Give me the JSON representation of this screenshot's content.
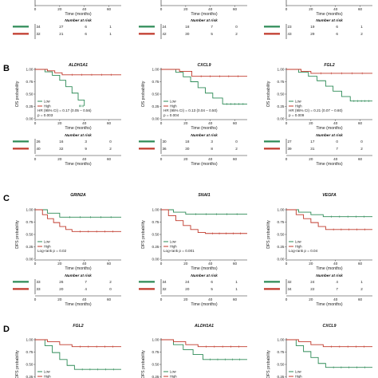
{
  "colors": {
    "low": "#2e8b57",
    "high": "#c0392b",
    "axis": "#222222"
  },
  "risk_title": "Number at risk",
  "xlabel": "Time (months)",
  "legend": {
    "low": "Low",
    "high": "High"
  },
  "top_row": [
    {
      "risk": [
        [
          34,
          27,
          6,
          1
        ],
        [
          32,
          21,
          6,
          1
        ]
      ],
      "xticks": [
        "0",
        "20",
        "40",
        "60"
      ]
    },
    {
      "risk": [
        [
          24,
          18,
          7,
          0
        ],
        [
          42,
          30,
          5,
          2
        ]
      ],
      "xticks": [
        "0",
        "20",
        "40",
        "60"
      ]
    },
    {
      "risk": [
        [
          23,
          19,
          6,
          1
        ],
        [
          43,
          29,
          6,
          2
        ]
      ],
      "xticks": [
        "0",
        "20",
        "40",
        "60"
      ]
    }
  ],
  "chart_data": [
    {
      "type": "line",
      "panel": "B",
      "title": "ALDH1A1",
      "xlabel": "Time (months)",
      "ylabel": "OS probability",
      "xlim": [
        0,
        70
      ],
      "ylim": [
        0,
        1
      ],
      "xticks": [
        "0",
        "20",
        "40",
        "60"
      ],
      "yticks": [
        "0.00",
        "0.25",
        "0.50",
        "0.75",
        "1.00"
      ],
      "note": [
        "HR (95% CI) = 0.17 (0.05 – 0.56)",
        "p = 0.003"
      ],
      "series": [
        {
          "name": "Low",
          "x": [
            0,
            8,
            14,
            20,
            25,
            30,
            35,
            40
          ],
          "y": [
            1,
            0.95,
            0.88,
            0.78,
            0.65,
            0.52,
            0.38,
            0.26
          ]
        },
        {
          "name": "High",
          "x": [
            0,
            10,
            16,
            22,
            70
          ],
          "y": [
            1,
            0.97,
            0.93,
            0.89,
            0.89
          ]
        }
      ],
      "risk": [
        [
          26,
          16,
          3,
          0
        ],
        [
          40,
          32,
          9,
          2
        ]
      ]
    },
    {
      "type": "line",
      "panel": "B",
      "title": "CXCL9",
      "xlabel": "Time (months)",
      "ylabel": "OS probability",
      "xlim": [
        0,
        70
      ],
      "ylim": [
        0,
        1
      ],
      "xticks": [
        "0",
        "20",
        "40",
        "60"
      ],
      "yticks": [
        "0.00",
        "0.25",
        "0.50",
        "0.75",
        "1.00"
      ],
      "note": [
        "HR (95% CI) = 0.13 (0.04 – 0.50)",
        "p = 0.004"
      ],
      "series": [
        {
          "name": "Low",
          "x": [
            0,
            12,
            18,
            24,
            30,
            36,
            42,
            50,
            70
          ],
          "y": [
            1,
            0.94,
            0.85,
            0.75,
            0.63,
            0.52,
            0.42,
            0.3,
            0.3
          ]
        },
        {
          "name": "High",
          "x": [
            0,
            15,
            25,
            70
          ],
          "y": [
            1,
            0.96,
            0.86,
            0.86
          ]
        }
      ],
      "risk": [
        [
          30,
          18,
          3,
          0
        ],
        [
          36,
          30,
          8,
          2
        ]
      ]
    },
    {
      "type": "line",
      "panel": "B",
      "title": "FGL2",
      "xlabel": "Time (months)",
      "ylabel": "OS probability",
      "xlim": [
        0,
        70
      ],
      "ylim": [
        0,
        1
      ],
      "xticks": [
        "0",
        "20",
        "40",
        "60"
      ],
      "yticks": [
        "0.00",
        "0.25",
        "0.50",
        "0.75",
        "1.00"
      ],
      "note": [
        "HR (95% CI) = 0.21 (0.07 – 0.60)",
        "p = 0.009"
      ],
      "series": [
        {
          "name": "Low",
          "x": [
            0,
            10,
            18,
            25,
            32,
            38,
            45,
            52,
            70
          ],
          "y": [
            1,
            0.94,
            0.86,
            0.77,
            0.66,
            0.56,
            0.45,
            0.36,
            0.36
          ]
        },
        {
          "name": "High",
          "x": [
            0,
            12,
            20,
            70
          ],
          "y": [
            1,
            0.96,
            0.92,
            0.92
          ]
        }
      ],
      "risk": [
        [
          27,
          17,
          0,
          0
        ],
        [
          39,
          31,
          7,
          2
        ]
      ]
    },
    {
      "type": "line",
      "panel": "C",
      "title": "GRIN2A",
      "xlabel": "Time (months)",
      "ylabel": "DFS probability",
      "xlim": [
        0,
        70
      ],
      "ylim": [
        0,
        1
      ],
      "xticks": [
        "0",
        "20",
        "40",
        "60"
      ],
      "yticks": [
        "0.00",
        "0.25",
        "0.50",
        "0.75",
        "1.00"
      ],
      "note": [
        "Log-rank  p = 0.02",
        ""
      ],
      "series": [
        {
          "name": "Low",
          "x": [
            0,
            10,
            20,
            70
          ],
          "y": [
            1,
            0.93,
            0.85,
            0.85
          ]
        },
        {
          "name": "High",
          "x": [
            0,
            6,
            10,
            15,
            20,
            25,
            30,
            70
          ],
          "y": [
            1,
            0.9,
            0.82,
            0.74,
            0.66,
            0.6,
            0.56,
            0.56
          ]
        }
      ],
      "risk": [
        [
          33,
          26,
          7,
          2
        ],
        [
          33,
          20,
          4,
          0
        ]
      ]
    },
    {
      "type": "line",
      "panel": "C",
      "title": "SNAI1",
      "xlabel": "Time (months)",
      "ylabel": "DFS probability",
      "xlim": [
        0,
        70
      ],
      "ylim": [
        0,
        1
      ],
      "xticks": [
        "0",
        "20",
        "40",
        "60"
      ],
      "yticks": [
        "0.00",
        "0.25",
        "0.50",
        "0.75",
        "1.00"
      ],
      "note": [
        "Log-rank  p = 0.001",
        ""
      ],
      "series": [
        {
          "name": "Low",
          "x": [
            0,
            10,
            20,
            70
          ],
          "y": [
            1,
            0.95,
            0.91,
            0.91
          ]
        },
        {
          "name": "High",
          "x": [
            0,
            6,
            12,
            18,
            24,
            30,
            36,
            70
          ],
          "y": [
            1,
            0.88,
            0.78,
            0.68,
            0.6,
            0.54,
            0.52,
            0.52
          ]
        }
      ],
      "risk": [
        [
          34,
          24,
          6,
          1
        ],
        [
          32,
          20,
          5,
          1
        ]
      ]
    },
    {
      "type": "line",
      "panel": "C",
      "title": "VEGFA",
      "xlabel": "Time (months)",
      "ylabel": "DFS probability",
      "xlim": [
        0,
        70
      ],
      "ylim": [
        0,
        1
      ],
      "xticks": [
        "0",
        "20",
        "40",
        "60"
      ],
      "yticks": [
        "0.00",
        "0.25",
        "0.50",
        "0.75",
        "1.00"
      ],
      "note": [
        "Log-rank  p = 0.04",
        ""
      ],
      "series": [
        {
          "name": "Low",
          "x": [
            0,
            10,
            20,
            30,
            70
          ],
          "y": [
            1,
            0.95,
            0.9,
            0.86,
            0.86
          ]
        },
        {
          "name": "High",
          "x": [
            0,
            8,
            14,
            20,
            26,
            32,
            70
          ],
          "y": [
            1,
            0.9,
            0.82,
            0.74,
            0.66,
            0.6,
            0.6
          ]
        }
      ],
      "risk": [
        [
          32,
          24,
          4,
          1
        ],
        [
          34,
          22,
          7,
          2
        ]
      ]
    },
    {
      "type": "line",
      "panel": "D",
      "title": "FGL2",
      "ylabel": "DFS probability",
      "xlim": [
        0,
        70
      ],
      "ylim": [
        0,
        1
      ],
      "yticks": [
        "0.00",
        "0.25",
        "0.50",
        "0.75",
        "1.00"
      ],
      "series": [
        {
          "name": "Low",
          "x": [
            0,
            8,
            14,
            20,
            26,
            32,
            70
          ],
          "y": [
            1,
            0.88,
            0.74,
            0.6,
            0.48,
            0.4,
            0.4
          ]
        },
        {
          "name": "High",
          "x": [
            0,
            10,
            20,
            30,
            70
          ],
          "y": [
            1,
            0.96,
            0.9,
            0.86,
            0.86
          ]
        }
      ]
    },
    {
      "type": "line",
      "panel": "D",
      "title": "ALDH1A1",
      "ylabel": "DFS probability",
      "xlim": [
        0,
        70
      ],
      "ylim": [
        0,
        1
      ],
      "yticks": [
        "0.00",
        "0.25",
        "0.50",
        "0.75",
        "1.00"
      ],
      "series": [
        {
          "name": "Low",
          "x": [
            0,
            10,
            18,
            26,
            34,
            70
          ],
          "y": [
            1,
            0.9,
            0.8,
            0.7,
            0.6,
            0.6
          ]
        },
        {
          "name": "High",
          "x": [
            0,
            10,
            20,
            30,
            70
          ],
          "y": [
            1,
            0.96,
            0.9,
            0.86,
            0.86
          ]
        }
      ]
    },
    {
      "type": "line",
      "panel": "D",
      "title": "CXCL9",
      "ylabel": "DFS probability",
      "xlim": [
        0,
        70
      ],
      "ylim": [
        0,
        1
      ],
      "yticks": [
        "0.00",
        "0.25",
        "0.50",
        "0.75",
        "1.00"
      ],
      "series": [
        {
          "name": "Low",
          "x": [
            0,
            8,
            14,
            20,
            26,
            32,
            70
          ],
          "y": [
            1,
            0.88,
            0.76,
            0.64,
            0.52,
            0.44,
            0.44
          ]
        },
        {
          "name": "High",
          "x": [
            0,
            10,
            20,
            30,
            70
          ],
          "y": [
            1,
            0.96,
            0.9,
            0.86,
            0.86
          ]
        }
      ]
    }
  ]
}
